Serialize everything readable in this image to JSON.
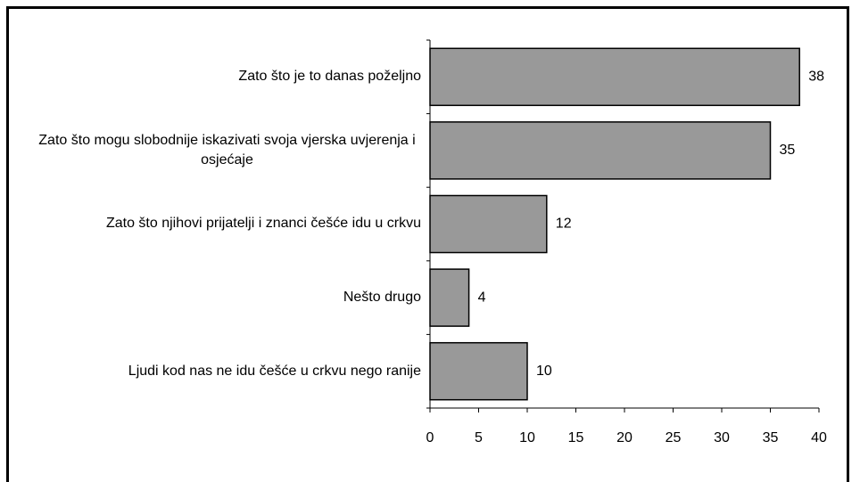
{
  "chart_data": {
    "type": "bar",
    "orientation": "horizontal",
    "categories": [
      "Zato što je to danas poželjno",
      "Zato što mogu slobodnije iskazivati svoja vjerska uvjerenja i osjećaje",
      "Zato što njihovi prijatelji i znanci češće idu u crkvu",
      "Nešto drugo",
      "Ljudi kod nas ne idu češće u crkvu nego ranije"
    ],
    "values": [
      38,
      35,
      12,
      4,
      10
    ],
    "color": "#999999",
    "xlim": [
      0,
      40
    ],
    "xticks": [
      0,
      5,
      10,
      15,
      20,
      25,
      30,
      35,
      40
    ],
    "grid": false
  }
}
